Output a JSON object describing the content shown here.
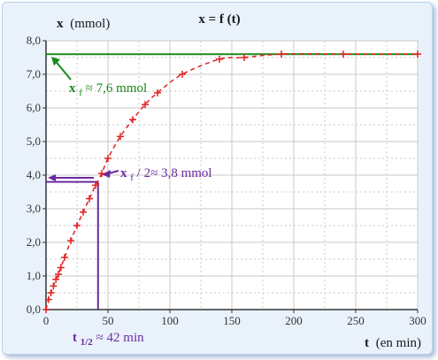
{
  "chart_data": {
    "type": "scatter",
    "title": "x = f (t)",
    "xlabel_symbol": "t",
    "xlabel_unit": "(en min)",
    "ylabel_symbol": "x",
    "ylabel_unit": "(mmol)",
    "xlim": [
      0,
      300
    ],
    "ylim": [
      0,
      8
    ],
    "x_ticks": [
      0,
      50,
      100,
      150,
      200,
      250,
      300
    ],
    "y_ticks": [
      0,
      1,
      2,
      3,
      4,
      5,
      6,
      7,
      8
    ],
    "y_tick_labels": [
      "0,0",
      "1,0",
      "2,0",
      "3,0",
      "4,0",
      "5,0",
      "6,0",
      "7,0",
      "8,0"
    ],
    "grid": true,
    "series": [
      {
        "marker": "+",
        "line": "dashed",
        "color": "#e02020",
        "x": [
          0,
          2,
          4,
          6,
          8,
          10,
          12,
          15,
          20,
          25,
          30,
          35,
          40,
          45,
          50,
          60,
          70,
          80,
          90,
          110,
          140,
          160,
          190,
          240,
          300
        ],
        "y": [
          0.0,
          0.3,
          0.5,
          0.7,
          0.9,
          1.05,
          1.25,
          1.55,
          2.05,
          2.5,
          2.9,
          3.3,
          3.7,
          4.05,
          4.5,
          5.15,
          5.65,
          6.1,
          6.45,
          7.0,
          7.45,
          7.5,
          7.6,
          7.6,
          7.6
        ]
      }
    ],
    "asymptote": {
      "y": 7.6,
      "color": "#1a8a1a",
      "label_symbol": "x",
      "label_sub": "f",
      "label_text": "≈ 7,6 mmol"
    },
    "half_reaction": {
      "y": 3.8,
      "x": 42,
      "color": "#6a2aa0",
      "label_symbol": "x",
      "label_sub": "f",
      "label_text": " / 2≈ 3,8 mmol",
      "t_symbol": "t",
      "t_sub": "1/2",
      "t_text": " ≈ 42 min"
    },
    "colors": {
      "frame_bg": "#e9f2fb",
      "plot_bg": "#ffffff",
      "grid": "#c8c8c8",
      "axis": "#333333"
    }
  }
}
